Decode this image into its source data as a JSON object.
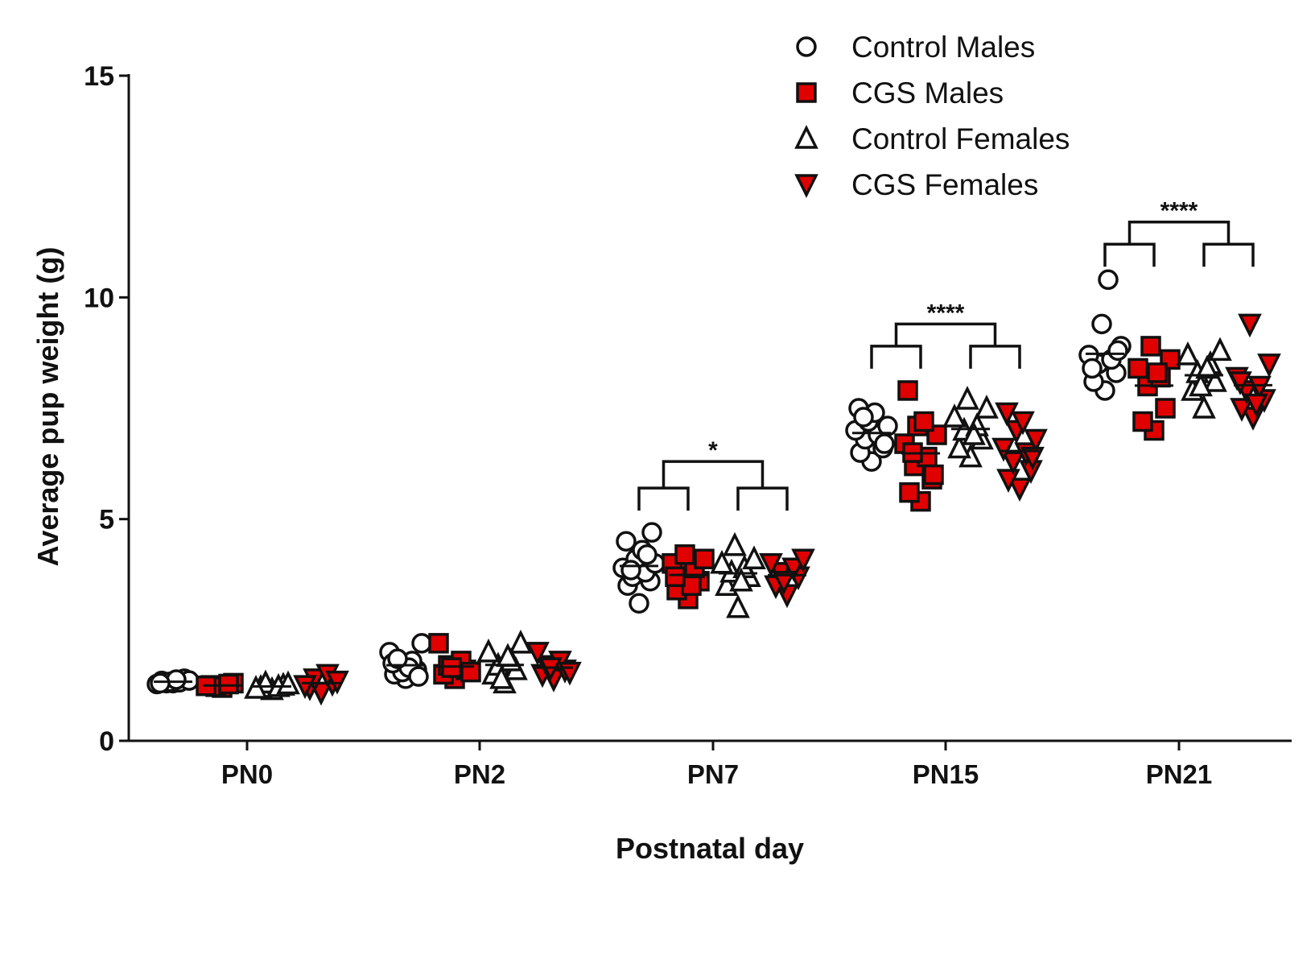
{
  "chart_data": {
    "type": "scatter",
    "title": "",
    "xlabel": "Postnatal day",
    "ylabel": "Average pup weight (g)",
    "ylim": [
      0,
      15
    ],
    "yticks": [
      "0",
      "5",
      "10",
      "15"
    ],
    "categories": [
      "PN0",
      "PN2",
      "PN7",
      "PN15",
      "PN21"
    ],
    "legend_position": "top-right",
    "colors": {
      "red": "#e00000",
      "ink": "#111111"
    },
    "series": [
      {
        "name": "Control Males",
        "marker": "circle",
        "fill": "#ffffff",
        "values": [
          [
            1.3,
            1.35,
            1.4,
            1.3,
            1.32,
            1.28,
            1.36,
            1.33,
            1.38,
            1.3
          ],
          [
            1.4,
            1.5,
            1.6,
            1.7,
            1.8,
            2.0,
            2.2,
            1.55,
            1.65,
            1.75,
            1.45,
            1.85
          ],
          [
            3.1,
            3.5,
            3.6,
            3.7,
            3.8,
            3.9,
            4.0,
            4.1,
            4.3,
            4.5,
            4.7,
            3.85,
            4.2
          ],
          [
            6.3,
            6.5,
            6.6,
            6.8,
            6.9,
            7.0,
            7.1,
            7.2,
            7.4,
            7.5,
            6.7,
            7.3
          ],
          [
            7.9,
            8.1,
            8.3,
            8.5,
            8.6,
            8.7,
            8.9,
            9.4,
            10.4,
            8.4,
            8.8
          ]
        ]
      },
      {
        "name": "CGS Males",
        "marker": "square",
        "fill": "#e00000",
        "values": [
          [
            1.2,
            1.25,
            1.3,
            1.22,
            1.28,
            1.24
          ],
          [
            1.4,
            1.5,
            1.6,
            1.7,
            1.8,
            2.2,
            1.55,
            1.65
          ],
          [
            3.2,
            3.4,
            3.6,
            3.8,
            3.9,
            4.0,
            4.1,
            4.2,
            3.5,
            3.7
          ],
          [
            5.4,
            5.6,
            5.9,
            6.2,
            6.4,
            6.7,
            6.9,
            7.1,
            7.2,
            7.9,
            6.0,
            6.5
          ],
          [
            7.0,
            7.2,
            7.5,
            8.0,
            8.2,
            8.4,
            8.6,
            8.9,
            8.3
          ]
        ]
      },
      {
        "name": "Control Females",
        "marker": "triangle-up",
        "fill": "#ffffff",
        "values": [
          [
            1.15,
            1.2,
            1.25,
            1.3,
            1.22,
            1.18,
            1.28
          ],
          [
            1.3,
            1.5,
            1.6,
            1.7,
            1.8,
            2.0,
            2.2,
            1.4,
            1.9
          ],
          [
            3.0,
            3.5,
            3.7,
            3.8,
            3.9,
            4.0,
            4.1,
            4.4,
            3.6
          ],
          [
            6.4,
            6.6,
            6.8,
            7.0,
            7.1,
            7.3,
            7.5,
            7.7,
            6.9
          ],
          [
            7.5,
            7.9,
            8.1,
            8.3,
            8.5,
            8.7,
            8.8,
            8.0,
            8.4
          ]
        ]
      },
      {
        "name": "CGS Females",
        "marker": "triangle-down",
        "fill": "#e00000",
        "values": [
          [
            1.1,
            1.2,
            1.3,
            1.4,
            1.5,
            1.25,
            1.35
          ],
          [
            1.4,
            1.5,
            1.6,
            1.7,
            1.8,
            2.0,
            1.55,
            1.65
          ],
          [
            3.3,
            3.5,
            3.7,
            3.8,
            3.9,
            4.0,
            4.1,
            3.6
          ],
          [
            5.7,
            5.9,
            6.1,
            6.3,
            6.5,
            6.6,
            6.8,
            7.0,
            7.2,
            7.4,
            6.4
          ],
          [
            7.3,
            7.5,
            7.7,
            7.9,
            8.0,
            8.2,
            8.5,
            9.4,
            7.6,
            8.1
          ]
        ]
      }
    ],
    "annotations": [
      {
        "category": "PN7",
        "text": "*",
        "left_pair": [
          "Control Males",
          "CGS Males"
        ],
        "right_pair": [
          "Control Females",
          "CGS Females"
        ],
        "inner_level": 5.7,
        "outer_level": 6.3
      },
      {
        "category": "PN15",
        "text": "****",
        "left_pair": [
          "Control Males",
          "CGS Males"
        ],
        "right_pair": [
          "Control Females",
          "CGS Females"
        ],
        "inner_level": 8.9,
        "outer_level": 9.4
      },
      {
        "category": "PN21",
        "text": "****",
        "left_pair": [
          "Control Males",
          "CGS Males"
        ],
        "right_pair": [
          "Control Females",
          "CGS Females"
        ],
        "inner_level": 11.2,
        "outer_level": 11.7
      }
    ]
  }
}
